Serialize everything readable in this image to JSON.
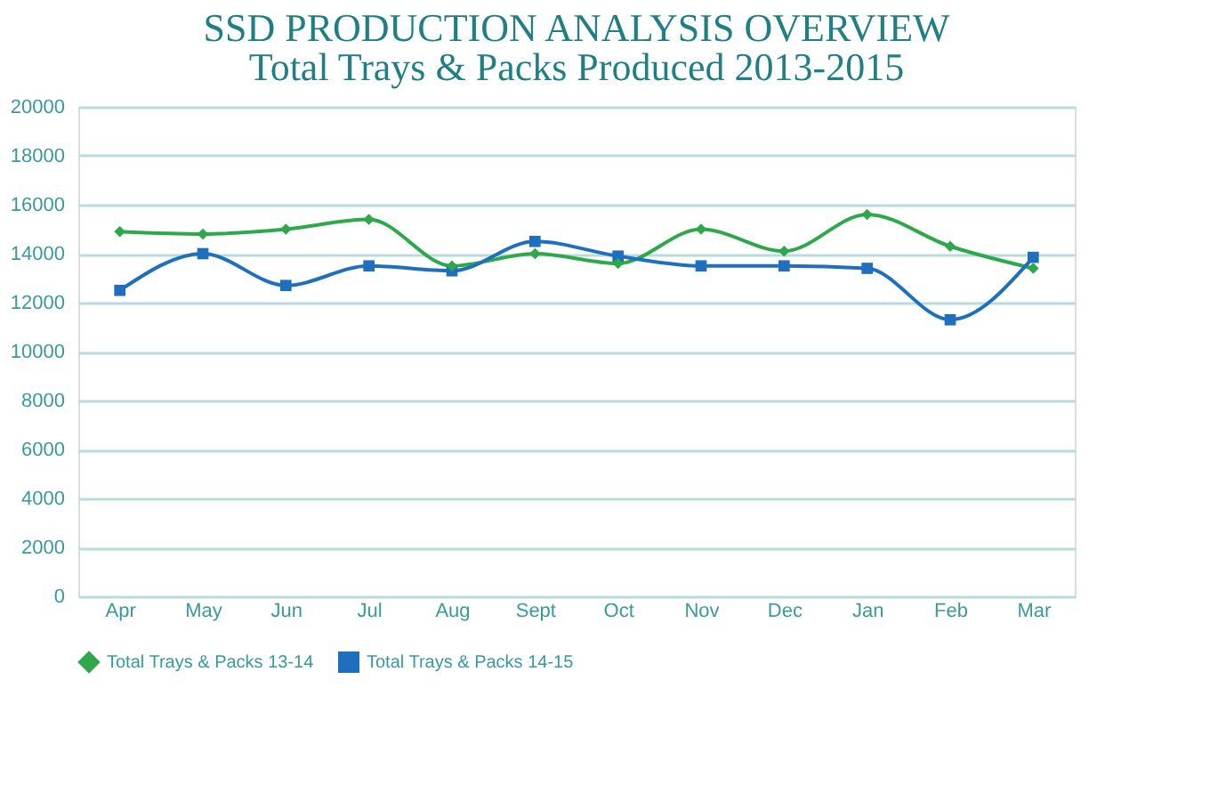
{
  "chart_data": {
    "type": "line",
    "title": "SSD PRODUCTION ANALYSIS OVERVIEW",
    "subtitle": "Total Trays & Packs Produced 2013-2015",
    "categories": [
      "Apr",
      "May",
      "Jun",
      "Jul",
      "Aug",
      "Sept",
      "Oct",
      "Nov",
      "Dec",
      "Jan",
      "Feb",
      "Mar"
    ],
    "series": [
      {
        "name": "Total Trays & Packs 13-14",
        "color": "#2ea84a",
        "marker": "diamond",
        "values": [
          14900,
          14800,
          15000,
          15400,
          13500,
          14000,
          13600,
          15000,
          14100,
          15600,
          14300,
          13400
        ]
      },
      {
        "name": "Total Trays & Packs 14-15",
        "color": "#1f6fbf",
        "marker": "square",
        "values": [
          12500,
          14000,
          12700,
          13500,
          13300,
          14500,
          13900,
          13500,
          13500,
          13400,
          11300,
          13850
        ]
      }
    ],
    "ylim": [
      0,
      20000
    ],
    "yticks": [
      0,
      2000,
      4000,
      6000,
      8000,
      10000,
      12000,
      14000,
      16000,
      18000,
      20000
    ],
    "grid": "y",
    "legend": "bottom"
  }
}
